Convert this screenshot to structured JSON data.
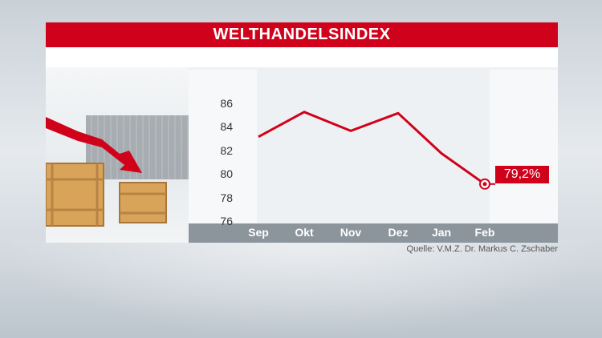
{
  "chart_data": {
    "type": "line",
    "title": "WELTHANDELSINDEX",
    "categories": [
      "Sep",
      "Okt",
      "Nov",
      "Dez",
      "Jan",
      "Feb"
    ],
    "values": [
      83.2,
      85.3,
      83.7,
      85.2,
      81.8,
      79.2
    ],
    "yticks": [
      "86",
      "84",
      "82",
      "80",
      "78",
      "76"
    ],
    "ylim": [
      75,
      87
    ],
    "last_value_label": "79,2%",
    "line_color": "#d0021b",
    "grid": false
  },
  "source": "Quelle: V.M.Z. Dr. Markus C. Zschaber"
}
